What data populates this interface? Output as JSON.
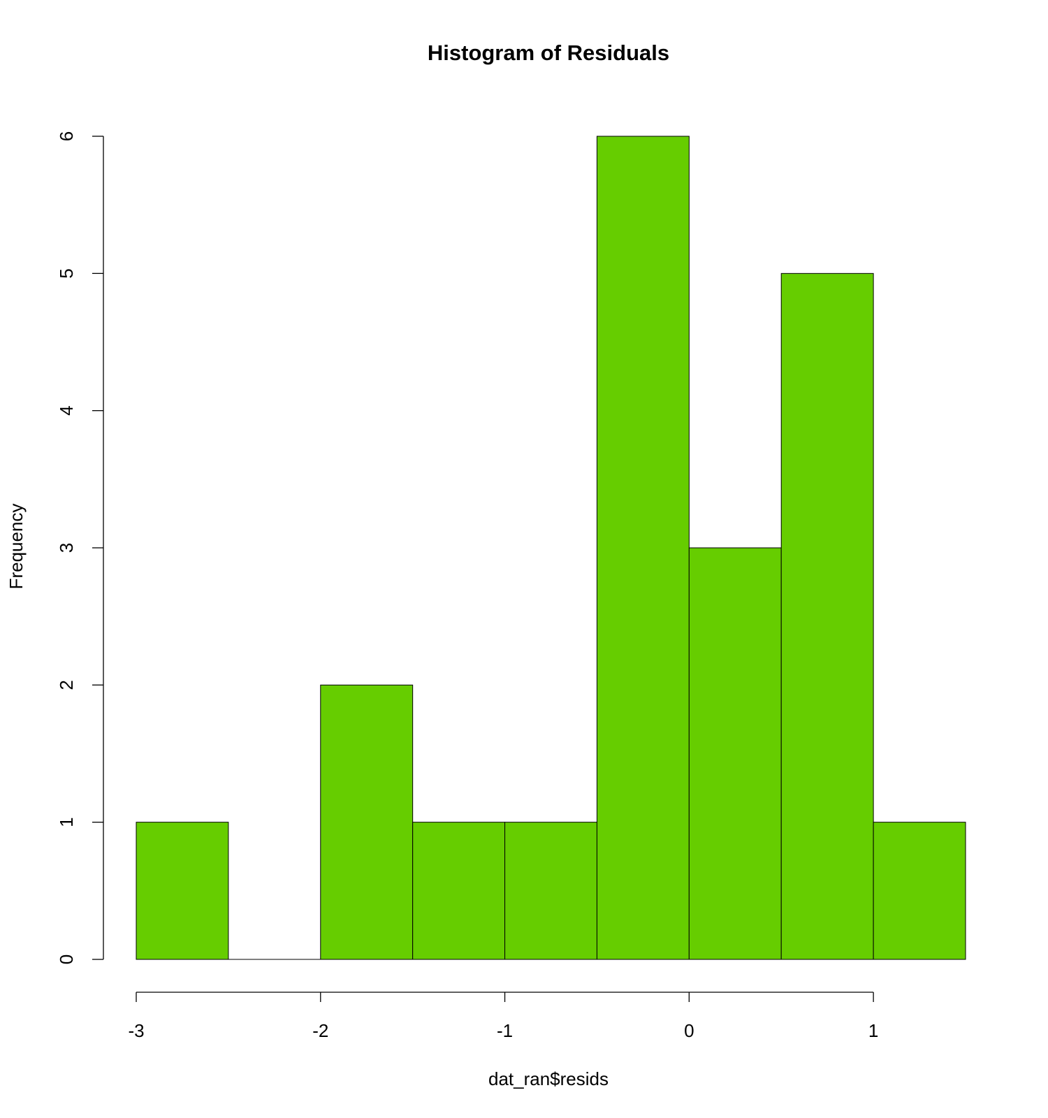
{
  "chart_data": {
    "type": "bar",
    "title": "Histogram of Residuals",
    "xlabel": "dat_ran$resids",
    "ylabel": "Frequency",
    "bins": [
      {
        "from": -3.0,
        "to": -2.5,
        "count": 1
      },
      {
        "from": -2.5,
        "to": -2.0,
        "count": 0
      },
      {
        "from": -2.0,
        "to": -1.5,
        "count": 2
      },
      {
        "from": -1.5,
        "to": -1.0,
        "count": 1
      },
      {
        "from": -1.0,
        "to": -0.5,
        "count": 1
      },
      {
        "from": -0.5,
        "to": 0.0,
        "count": 6
      },
      {
        "from": 0.0,
        "to": 0.5,
        "count": 3
      },
      {
        "from": 0.5,
        "to": 1.0,
        "count": 5
      },
      {
        "from": 1.0,
        "to": 1.5,
        "count": 1
      }
    ],
    "xlim": [
      -3.0,
      1.5
    ],
    "ylim": [
      0,
      6
    ],
    "x_ticks": [
      -3,
      -2,
      -1,
      0,
      1
    ],
    "x_tick_labels": [
      "-3",
      "-2",
      "-1",
      "0",
      "1"
    ],
    "y_ticks": [
      0,
      1,
      2,
      3,
      4,
      5,
      6
    ],
    "y_tick_labels": [
      "0",
      "1",
      "2",
      "3",
      "4",
      "5",
      "6"
    ],
    "bar_color": "#66CD00",
    "grid": false
  }
}
